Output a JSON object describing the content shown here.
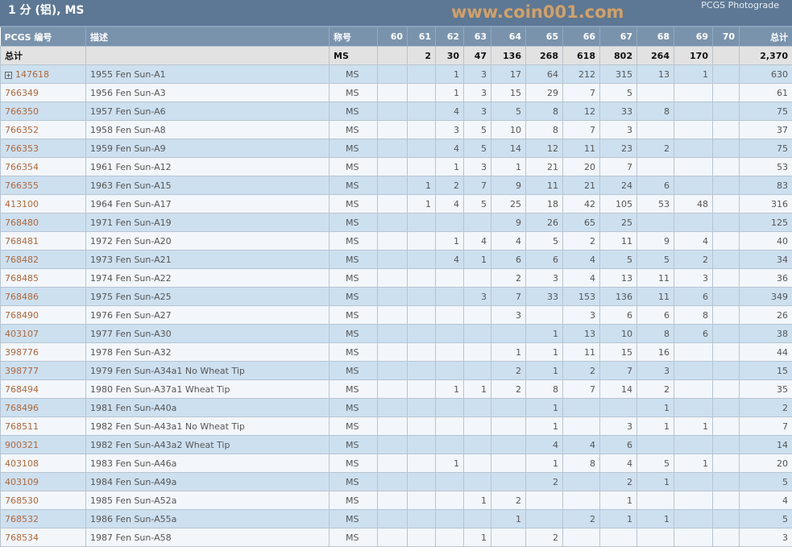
{
  "title": "1 分 (铝), MS",
  "photograde": "PCGS Photograde",
  "headers": [
    "PCGS 编号",
    "描述",
    "称号",
    "60",
    "61",
    "62",
    "63",
    "64",
    "65",
    "66",
    "67",
    "68",
    "69",
    "70",
    "总计"
  ],
  "totals": {
    "label": "总计",
    "designation": "MS",
    "grades": [
      "",
      "2",
      "30",
      "47",
      "136",
      "268",
      "618",
      "802",
      "264",
      "170",
      ""
    ],
    "total": "2,370"
  },
  "rows": [
    {
      "id": "147618",
      "expand": true,
      "desc": "1955 Fen Sun-A1",
      "des": "MS",
      "g": [
        "",
        "",
        "1",
        "3",
        "17",
        "64",
        "212",
        "315",
        "13",
        "1",
        ""
      ],
      "total": "630"
    },
    {
      "id": "766349",
      "desc": "1956 Fen Sun-A3",
      "des": "MS",
      "g": [
        "",
        "",
        "1",
        "3",
        "15",
        "29",
        "7",
        "5",
        "",
        "",
        ""
      ],
      "total": "61"
    },
    {
      "id": "766350",
      "desc": "1957 Fen Sun-A6",
      "des": "MS",
      "g": [
        "",
        "",
        "4",
        "3",
        "5",
        "8",
        "12",
        "33",
        "8",
        "",
        ""
      ],
      "total": "75"
    },
    {
      "id": "766352",
      "desc": "1958 Fen Sun-A8",
      "des": "MS",
      "g": [
        "",
        "",
        "3",
        "5",
        "10",
        "8",
        "7",
        "3",
        "",
        "",
        ""
      ],
      "total": "37"
    },
    {
      "id": "766353",
      "desc": "1959 Fen Sun-A9",
      "des": "MS",
      "g": [
        "",
        "",
        "4",
        "5",
        "14",
        "12",
        "11",
        "23",
        "2",
        "",
        ""
      ],
      "total": "75"
    },
    {
      "id": "766354",
      "desc": "1961 Fen Sun-A12",
      "des": "MS",
      "g": [
        "",
        "",
        "1",
        "3",
        "1",
        "21",
        "20",
        "7",
        "",
        "",
        ""
      ],
      "total": "53"
    },
    {
      "id": "766355",
      "desc": "1963 Fen Sun-A15",
      "des": "MS",
      "g": [
        "",
        "1",
        "2",
        "7",
        "9",
        "11",
        "21",
        "24",
        "6",
        "",
        ""
      ],
      "total": "83"
    },
    {
      "id": "413100",
      "desc": "1964 Fen Sun-A17",
      "des": "MS",
      "g": [
        "",
        "1",
        "4",
        "5",
        "25",
        "18",
        "42",
        "105",
        "53",
        "48",
        ""
      ],
      "total": "316"
    },
    {
      "id": "768480",
      "desc": "1971 Fen Sun-A19",
      "des": "MS",
      "g": [
        "",
        "",
        "",
        "",
        "9",
        "26",
        "65",
        "25",
        "",
        "",
        ""
      ],
      "total": "125"
    },
    {
      "id": "768481",
      "desc": "1972 Fen Sun-A20",
      "des": "MS",
      "g": [
        "",
        "",
        "1",
        "4",
        "4",
        "5",
        "2",
        "11",
        "9",
        "4",
        ""
      ],
      "total": "40"
    },
    {
      "id": "768482",
      "desc": "1973 Fen Sun-A21",
      "des": "MS",
      "g": [
        "",
        "",
        "4",
        "1",
        "6",
        "6",
        "4",
        "5",
        "5",
        "2",
        ""
      ],
      "total": "34"
    },
    {
      "id": "768485",
      "desc": "1974 Fen Sun-A22",
      "des": "MS",
      "g": [
        "",
        "",
        "",
        "",
        "2",
        "3",
        "4",
        "13",
        "11",
        "3",
        ""
      ],
      "total": "36"
    },
    {
      "id": "768486",
      "desc": "1975 Fen Sun-A25",
      "des": "MS",
      "g": [
        "",
        "",
        "",
        "3",
        "7",
        "33",
        "153",
        "136",
        "11",
        "6",
        ""
      ],
      "total": "349"
    },
    {
      "id": "768490",
      "desc": "1976 Fen Sun-A27",
      "des": "MS",
      "g": [
        "",
        "",
        "",
        "",
        "3",
        "",
        "3",
        "6",
        "6",
        "8",
        ""
      ],
      "total": "26"
    },
    {
      "id": "403107",
      "desc": "1977 Fen Sun-A30",
      "des": "MS",
      "g": [
        "",
        "",
        "",
        "",
        "",
        "1",
        "13",
        "10",
        "8",
        "6",
        ""
      ],
      "total": "38"
    },
    {
      "id": "398776",
      "desc": "1978 Fen Sun-A32",
      "des": "MS",
      "g": [
        "",
        "",
        "",
        "",
        "1",
        "1",
        "11",
        "15",
        "16",
        "",
        ""
      ],
      "total": "44"
    },
    {
      "id": "398777",
      "desc": "1979 Fen Sun-A34a1 No Wheat Tip",
      "des": "MS",
      "g": [
        "",
        "",
        "",
        "",
        "2",
        "1",
        "2",
        "7",
        "3",
        "",
        ""
      ],
      "total": "15"
    },
    {
      "id": "768494",
      "desc": "1980 Fen Sun-A37a1 Wheat Tip",
      "des": "MS",
      "g": [
        "",
        "",
        "1",
        "1",
        "2",
        "8",
        "7",
        "14",
        "2",
        "",
        ""
      ],
      "total": "35"
    },
    {
      "id": "768496",
      "desc": "1981 Fen Sun-A40a",
      "des": "MS",
      "g": [
        "",
        "",
        "",
        "",
        "",
        "1",
        "",
        "",
        "1",
        "",
        ""
      ],
      "total": "2"
    },
    {
      "id": "768511",
      "desc": "1982 Fen Sun-A43a1 No Wheat Tip",
      "des": "MS",
      "g": [
        "",
        "",
        "",
        "",
        "",
        "1",
        "",
        "3",
        "1",
        "1",
        ""
      ],
      "total": "7"
    },
    {
      "id": "900321",
      "desc": "1982 Fen Sun-A43a2 Wheat Tip",
      "des": "MS",
      "g": [
        "",
        "",
        "",
        "",
        "",
        "4",
        "4",
        "6",
        "",
        "",
        ""
      ],
      "total": "14"
    },
    {
      "id": "403108",
      "desc": "1983 Fen Sun-A46a",
      "des": "MS",
      "g": [
        "",
        "",
        "1",
        "",
        "",
        "1",
        "8",
        "4",
        "5",
        "1",
        ""
      ],
      "total": "20"
    },
    {
      "id": "403109",
      "desc": "1984 Fen Sun-A49a",
      "des": "MS",
      "g": [
        "",
        "",
        "",
        "",
        "",
        "2",
        "",
        "2",
        "1",
        "",
        ""
      ],
      "total": "5"
    },
    {
      "id": "768530",
      "desc": "1985 Fen Sun-A52a",
      "des": "MS",
      "g": [
        "",
        "",
        "",
        "1",
        "2",
        "",
        "",
        "1",
        "",
        "",
        ""
      ],
      "total": "4"
    },
    {
      "id": "768532",
      "desc": "1986 Fen Sun-A55a",
      "des": "MS",
      "g": [
        "",
        "",
        "",
        "",
        "1",
        "",
        "2",
        "1",
        "1",
        "",
        ""
      ],
      "total": "5"
    },
    {
      "id": "768534",
      "desc": "1987 Fen Sun-A58",
      "des": "MS",
      "g": [
        "",
        "",
        "",
        "1",
        "",
        "2",
        "",
        "",
        "",
        "",
        ""
      ],
      "total": "3"
    }
  ],
  "watermark": "www.coin001.com"
}
